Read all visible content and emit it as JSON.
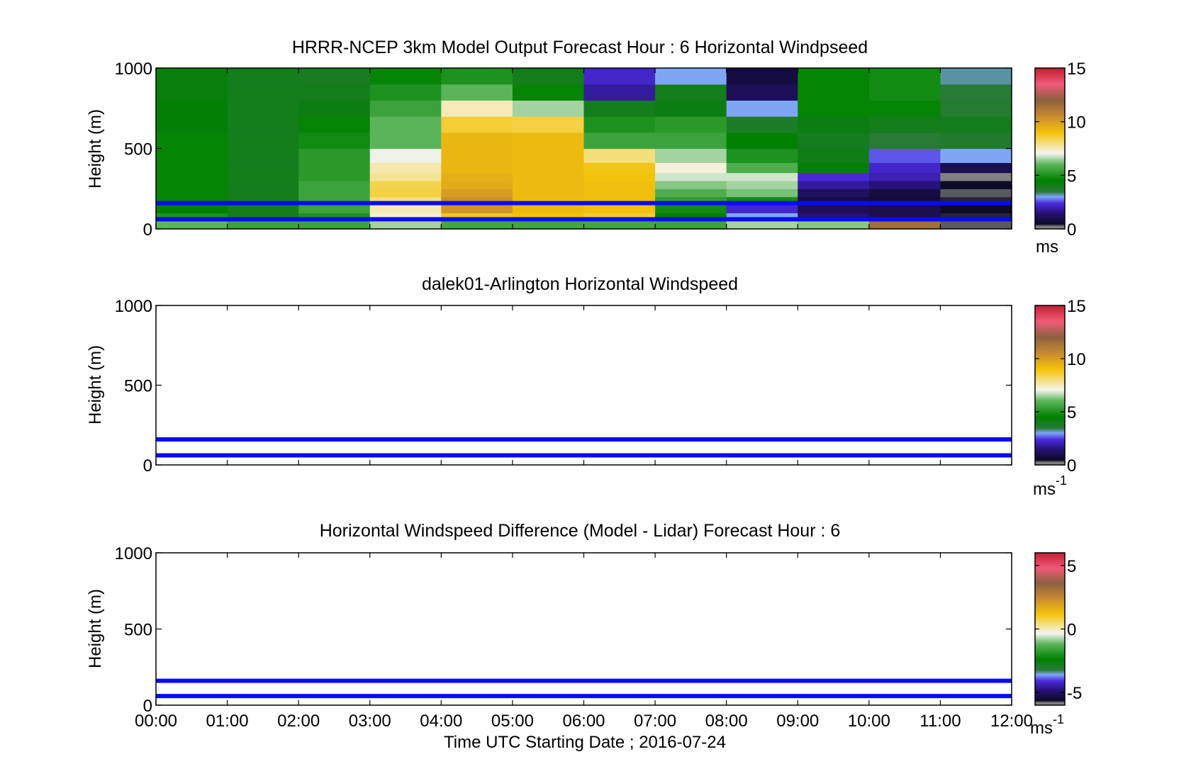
{
  "figure": {
    "xlabel": "Time UTC  Starting Date ; 2016-07-24"
  },
  "chart_data": [
    {
      "type": "heatmap",
      "title": "HRRR-NCEP 3km Model Output   Forecast Hour : 6 Horizontal Windpseed",
      "ylabel": "Height (m)",
      "ylim": [
        0,
        1000
      ],
      "yticks": [
        "0",
        "500",
        "1000"
      ],
      "xlim": [
        "00:00",
        "12:00"
      ],
      "colorbar": {
        "ticks": [
          "0",
          "5",
          "10",
          "15"
        ],
        "range": [
          0,
          15
        ],
        "unit": "ms",
        "unit_sup": ""
      },
      "heights": [
        25,
        75,
        125,
        175,
        225,
        275,
        325,
        375,
        450,
        550,
        650,
        750,
        850,
        950
      ],
      "z_by_hour": [
        [
          6.0,
          5.0,
          4.5,
          4.6,
          4.6,
          4.6,
          4.6,
          4.6,
          4.6,
          4.6,
          4.4,
          4.4,
          4.3,
          4.3
        ],
        [
          5.5,
          4.0,
          4.0,
          4.0,
          4.0,
          4.0,
          4.0,
          4.0,
          4.0,
          4.0,
          4.0,
          4.0,
          4.0,
          4.0
        ],
        [
          5.5,
          5.0,
          5.5,
          5.5,
          5.5,
          5.5,
          5.2,
          5.2,
          5.2,
          4.8,
          4.6,
          4.2,
          4.0,
          3.9
        ],
        [
          6.5,
          7.3,
          7.5,
          8.0,
          8.5,
          8.4,
          7.8,
          7.6,
          7.0,
          6.0,
          6.0,
          5.5,
          5.0,
          4.6
        ],
        [
          5.6,
          8.8,
          10.2,
          10.4,
          10.0,
          9.6,
          9.5,
          9.3,
          9.3,
          9.3,
          8.6,
          7.5,
          6.0,
          5.0
        ],
        [
          5.6,
          9.0,
          9.2,
          9.2,
          9.2,
          9.2,
          9.2,
          9.2,
          9.2,
          9.2,
          8.5,
          6.5,
          4.6,
          4.0
        ],
        [
          5.6,
          8.6,
          9.0,
          9.1,
          9.1,
          9.1,
          9.0,
          8.9,
          8.0,
          5.5,
          5.0,
          4.0,
          1.8,
          2.2
        ],
        [
          5.5,
          4.5,
          4.8,
          5.3,
          5.8,
          6.3,
          6.8,
          7.2,
          6.5,
          5.5,
          5.2,
          4.2,
          4.0,
          3.0
        ],
        [
          6.5,
          3.0,
          2.2,
          4.8,
          6.2,
          6.5,
          6.8,
          5.8,
          5.0,
          4.5,
          3.8,
          3.0,
          1.1,
          0.8
        ],
        [
          6.3,
          1.4,
          1.1,
          0.8,
          1.2,
          1.8,
          2.3,
          4.4,
          4.1,
          4.0,
          4.2,
          4.6,
          4.6,
          4.6
        ],
        [
          11.5,
          1.0,
          1.0,
          0.7,
          0.8,
          1.5,
          2.0,
          2.2,
          2.6,
          3.5,
          4.0,
          4.6,
          4.8,
          4.8
        ],
        [
          0.3,
          0.4,
          0.5,
          0.4,
          0.3,
          0.5,
          0.2,
          1.0,
          3.0,
          3.7,
          4.0,
          3.6,
          3.5,
          3.2
        ]
      ],
      "hlines": [
        60,
        160
      ]
    },
    {
      "type": "heatmap",
      "title": "dalek01-Arlington  Horizontal Windspeed",
      "ylabel": "Height (m)",
      "ylim": [
        0,
        1000
      ],
      "yticks": [
        "0",
        "500",
        "1000"
      ],
      "xlim": [
        "00:00",
        "12:00"
      ],
      "colorbar": {
        "ticks": [
          "0",
          "5",
          "10",
          "15"
        ],
        "range": [
          0,
          15
        ],
        "unit": "ms",
        "unit_sup": "-1"
      },
      "hlines": [
        60,
        160
      ]
    },
    {
      "type": "heatmap",
      "title": "Horizontal Windspeed Difference (Model - Lidar) Forecast Hour : 6",
      "ylabel": "Height (m)",
      "ylim": [
        0,
        1000
      ],
      "yticks": [
        "0",
        "500",
        "1000"
      ],
      "xticks": [
        "00:00",
        "01:00",
        "02:00",
        "03:00",
        "04:00",
        "05:00",
        "06:00",
        "07:00",
        "08:00",
        "09:00",
        "10:00",
        "11:00",
        "12:00"
      ],
      "xlim": [
        "00:00",
        "12:00"
      ],
      "colorbar": {
        "ticks": [
          "-5",
          "0",
          "5"
        ],
        "range": [
          -6,
          6
        ],
        "unit": "ms",
        "unit_sup": "-1"
      },
      "hlines": [
        60,
        160
      ]
    }
  ]
}
